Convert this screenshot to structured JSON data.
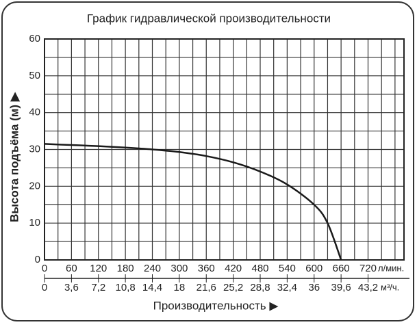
{
  "chart_data": {
    "type": "line",
    "title": "График гидравлической производительности",
    "y_label": "Высота подъёма (м) ▶",
    "x_label": "Производительность ▶",
    "x_unit": "л/мин.",
    "x2_unit": "м³/ч.",
    "xlim": [
      0,
      800
    ],
    "ylim": [
      0,
      60
    ],
    "x2lim": [
      0,
      48
    ],
    "xticks": [
      0,
      60,
      120,
      180,
      240,
      300,
      360,
      420,
      480,
      540,
      600,
      660,
      720
    ],
    "x2ticks": [
      0,
      {
        "value": 3.6,
        "label": "3,6"
      },
      {
        "value": 7.2,
        "label": "7,2"
      },
      {
        "value": 10.8,
        "label": "10,8"
      },
      {
        "value": 14.4,
        "label": "14,4"
      },
      18,
      {
        "value": 21.6,
        "label": "21,6"
      },
      {
        "value": 25.2,
        "label": "25,2"
      },
      {
        "value": 28.8,
        "label": "28,8"
      },
      {
        "value": 32.4,
        "label": "32,4"
      },
      36,
      {
        "value": 39.6,
        "label": "39,6"
      },
      {
        "value": 43.2,
        "label": "43,2"
      }
    ],
    "yticks": [
      0,
      10,
      20,
      30,
      40,
      50,
      60
    ],
    "grid": true,
    "xgrid": [
      0,
      30,
      60,
      90,
      120,
      150,
      180,
      210,
      240,
      270,
      300,
      330,
      360,
      390,
      420,
      450,
      480,
      510,
      540,
      570,
      600,
      630,
      660,
      690,
      720,
      750,
      780
    ],
    "ygrid": [
      0,
      5,
      10,
      15,
      20,
      25,
      30,
      35,
      40,
      45,
      50,
      55,
      60
    ],
    "x": [
      0,
      60,
      120,
      180,
      240,
      300,
      360,
      420,
      480,
      540,
      600,
      630,
      660
    ],
    "series": [
      {
        "color": "#1a1a1a",
        "values": [
          31.5,
          31.2,
          30.9,
          30.5,
          30,
          29.3,
          28.2,
          26.5,
          24,
          20.5,
          15,
          10,
          0
        ]
      }
    ]
  }
}
